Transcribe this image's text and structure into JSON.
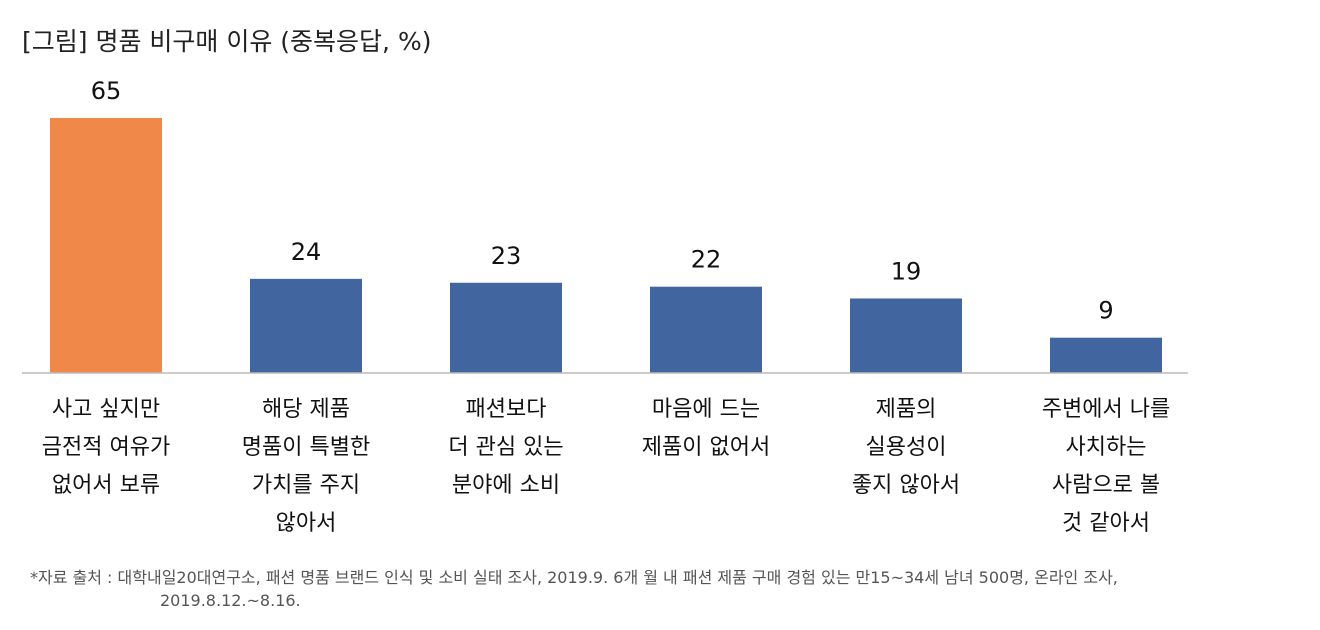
{
  "title": "[그림] 명품 비구매 이유 (중복응답, %)",
  "source": {
    "line1": "*자료 출처 : 대학내일20대연구소, 패션 명품 브랜드 인식 및 소비 실태 조사, 2019.9. 6개 월 내 패션 제품 구매 경험 있는 만15~34세 남녀 500명, 온라인 조사,",
    "line2": "2019.8.12.~8.16."
  },
  "chart_data": {
    "type": "bar",
    "categories": [
      [
        "사고 싶지만",
        "금전적 여유가",
        "없어서 보류"
      ],
      [
        "해당 제품",
        "명품이 특별한",
        "가치를 주지",
        "않아서"
      ],
      [
        "패션보다",
        "더 관심 있는",
        "분야에 소비"
      ],
      [
        "마음에 드는",
        "제품이 없어서"
      ],
      [
        "제품의",
        "실용성이",
        "좋지 않아서"
      ],
      [
        "주변에서 나를",
        "사치하는",
        "사람으로 볼",
        "것 같아서"
      ]
    ],
    "values": [
      65,
      24,
      23,
      22,
      19,
      9
    ],
    "data_labels": [
      "65",
      "24",
      "23",
      "22",
      "19",
      "9"
    ],
    "colors": [
      "#F0884A",
      "#41659E",
      "#41659E",
      "#41659E",
      "#41659E",
      "#41659E"
    ],
    "axis_color": "#BBBBBB",
    "ylim": [
      0,
      65
    ],
    "grid": false,
    "legend": "none"
  }
}
